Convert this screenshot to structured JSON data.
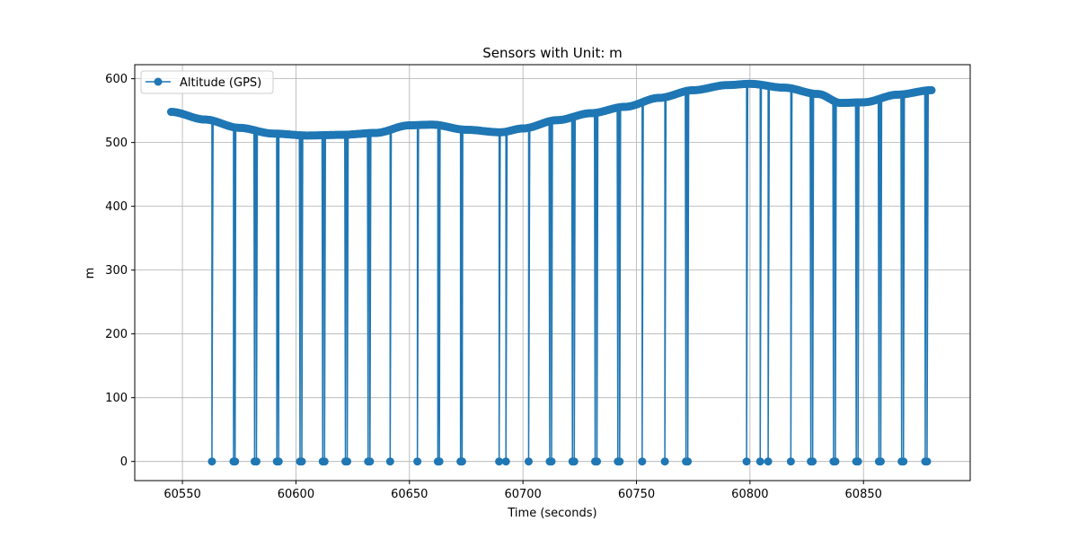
{
  "chart_data": {
    "type": "line",
    "title": "Sensors with Unit: m",
    "xlabel": "Time (seconds)",
    "ylabel": "m",
    "xlim": [
      60529,
      60897
    ],
    "ylim": [
      -30,
      622
    ],
    "xticks": [
      60550,
      60600,
      60650,
      60700,
      60750,
      60800,
      60850
    ],
    "yticks": [
      0,
      100,
      200,
      300,
      400,
      500,
      600
    ],
    "grid": true,
    "legend_position": "top-left",
    "series": [
      {
        "name": "Altitude (GPS)",
        "color": "#1f77b4",
        "marker": "circle",
        "baseline_points": [
          [
            60545,
            548
          ],
          [
            60560,
            536
          ],
          [
            60575,
            523
          ],
          [
            60590,
            514
          ],
          [
            60605,
            511
          ],
          [
            60620,
            512
          ],
          [
            60635,
            515
          ],
          [
            60650,
            527
          ],
          [
            60660,
            528
          ],
          [
            60675,
            520
          ],
          [
            60690,
            516
          ],
          [
            60700,
            522
          ],
          [
            60715,
            535
          ],
          [
            60730,
            546
          ],
          [
            60745,
            556
          ],
          [
            60760,
            570
          ],
          [
            60775,
            582
          ],
          [
            60790,
            590
          ],
          [
            60800,
            592
          ],
          [
            60815,
            586
          ],
          [
            60830,
            576
          ],
          [
            60840,
            562
          ],
          [
            60850,
            563
          ],
          [
            60865,
            575
          ],
          [
            60880,
            582
          ]
        ],
        "dropout_times": [
          60563,
          60572.5,
          60573.2,
          60581.8,
          60582.6,
          60591.6,
          60592.4,
          60601.8,
          60602.6,
          60611.8,
          60612.6,
          60621.8,
          60622.6,
          60631.8,
          60632.6,
          60641.5,
          60653.5,
          60662.5,
          60663.2,
          60672.5,
          60673.2,
          60689.5,
          60692.5,
          60702.5,
          60711.8,
          60712.6,
          60721.8,
          60722.6,
          60731.8,
          60732.6,
          60741.8,
          60742.6,
          60752.5,
          60762.5,
          60771.8,
          60772.6,
          60798.5,
          60804.5,
          60808,
          60818,
          60826.8,
          60827.6,
          60836.8,
          60837.6,
          60846.8,
          60847.6,
          60856.8,
          60857.6,
          60866.8,
          60867.6,
          60877.2,
          60878
        ],
        "dropout_value": 0
      }
    ]
  }
}
